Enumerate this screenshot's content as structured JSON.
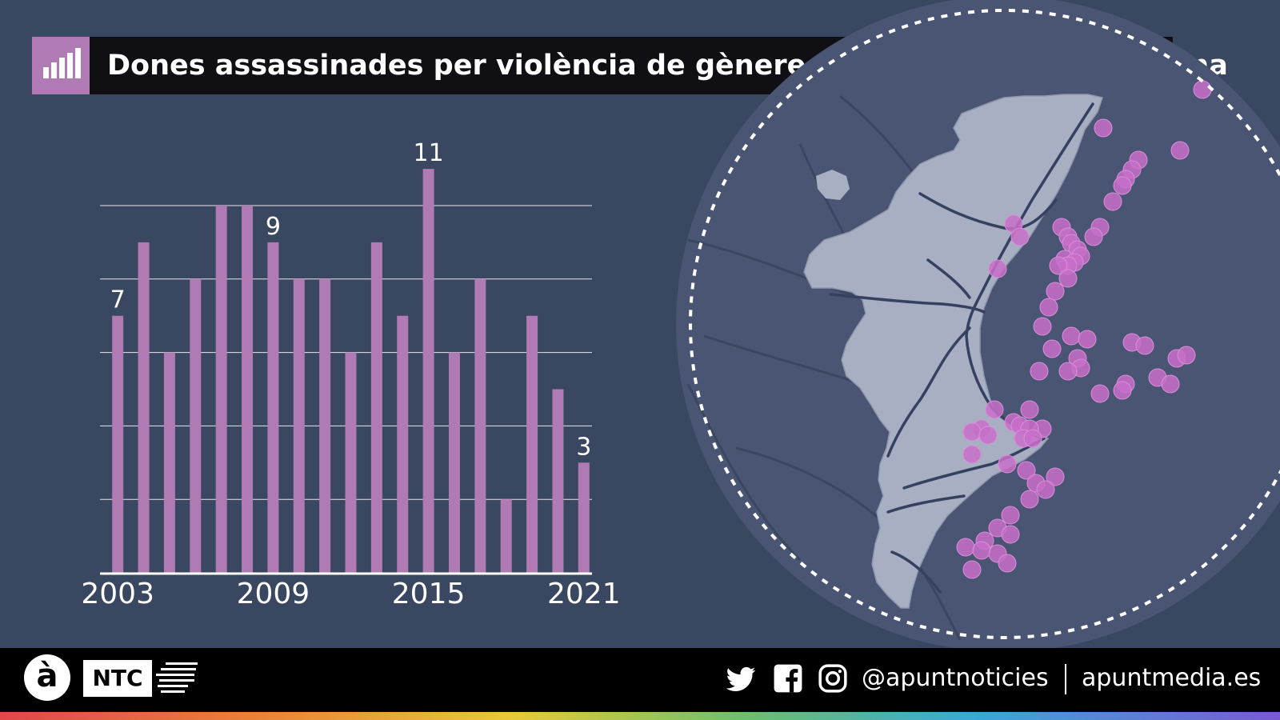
{
  "title": "Dones assassinades per violència de gènere a la Comunitat Valenciana",
  "chart_data": {
    "type": "bar",
    "years": [
      2003,
      2004,
      2005,
      2006,
      2007,
      2008,
      2009,
      2010,
      2011,
      2012,
      2013,
      2014,
      2015,
      2016,
      2017,
      2018,
      2019,
      2020,
      2021
    ],
    "values": [
      7,
      9,
      6,
      8,
      10,
      10,
      9,
      8,
      8,
      6,
      9,
      7,
      11,
      6,
      8,
      2,
      7,
      5,
      3
    ],
    "x_tick_labels": [
      "2003",
      "2009",
      "2015",
      "2021"
    ],
    "data_labels": {
      "2003": "7",
      "2009": "9",
      "2015": "11",
      "2021": "3"
    },
    "ylim": [
      0,
      10
    ],
    "gridlines": [
      2,
      4,
      6,
      8,
      10
    ],
    "y_axis_labels": false,
    "bar_color": "#b07ab5"
  },
  "map": {
    "region": "Comunitat Valenciana",
    "marker_color": "#c86fc9",
    "markers": [
      [
        0.62,
        0.03
      ],
      [
        0.31,
        0.15
      ],
      [
        0.55,
        0.22
      ],
      [
        0.42,
        0.25
      ],
      [
        0.4,
        0.28
      ],
      [
        0.38,
        0.31
      ],
      [
        0.37,
        0.33
      ],
      [
        0.34,
        0.38
      ],
      [
        0.3,
        0.46
      ],
      [
        0.28,
        0.49
      ],
      [
        0.03,
        0.45
      ],
      [
        0.05,
        0.49
      ],
      [
        0.18,
        0.46
      ],
      [
        0.2,
        0.49
      ],
      [
        0.21,
        0.51
      ],
      [
        0.23,
        0.53
      ],
      [
        0.24,
        0.55
      ],
      [
        0.19,
        0.56
      ],
      [
        0.22,
        0.57
      ],
      [
        0.2,
        0.58
      ],
      [
        0.17,
        0.58
      ],
      [
        -0.02,
        0.59
      ],
      [
        0.2,
        0.62
      ],
      [
        0.16,
        0.66
      ],
      [
        0.14,
        0.71
      ],
      [
        0.12,
        0.77
      ],
      [
        0.21,
        0.8
      ],
      [
        0.26,
        0.81
      ],
      [
        0.15,
        0.84
      ],
      [
        0.4,
        0.82
      ],
      [
        0.44,
        0.83
      ],
      [
        0.23,
        0.87
      ],
      [
        0.24,
        0.9
      ],
      [
        0.11,
        0.91
      ],
      [
        0.2,
        0.91
      ],
      [
        0.38,
        0.95
      ],
      [
        0.37,
        0.97
      ],
      [
        0.54,
        0.87
      ],
      [
        0.57,
        0.86
      ],
      [
        0.48,
        0.93
      ],
      [
        0.52,
        0.95
      ],
      [
        0.3,
        0.98
      ],
      [
        -0.03,
        1.03
      ],
      [
        0.08,
        1.03
      ],
      [
        0.03,
        1.07
      ],
      [
        0.05,
        1.08
      ],
      [
        0.12,
        1.09
      ],
      [
        -0.07,
        1.09
      ],
      [
        0.08,
        1.09
      ],
      [
        -0.1,
        1.1
      ],
      [
        -0.05,
        1.11
      ],
      [
        0.06,
        1.12
      ],
      [
        0.09,
        1.12
      ],
      [
        -0.1,
        1.17
      ],
      [
        0.01,
        1.2
      ],
      [
        0.07,
        1.22
      ],
      [
        0.16,
        1.24
      ],
      [
        0.1,
        1.26
      ],
      [
        0.13,
        1.28
      ],
      [
        0.08,
        1.31
      ],
      [
        0.02,
        1.36
      ],
      [
        -0.02,
        1.4
      ],
      [
        0.02,
        1.42
      ],
      [
        -0.06,
        1.44
      ],
      [
        -0.12,
        1.46
      ],
      [
        -0.07,
        1.47
      ],
      [
        -0.02,
        1.48
      ],
      [
        0.01,
        1.51
      ],
      [
        -0.1,
        1.53
      ]
    ]
  },
  "footer": {
    "logo_letter": "à",
    "brand": "NTC",
    "handle": "@apuntnoticies",
    "site": "apuntmedia.es",
    "icons": [
      "twitter-icon",
      "facebook-icon",
      "instagram-icon"
    ]
  }
}
